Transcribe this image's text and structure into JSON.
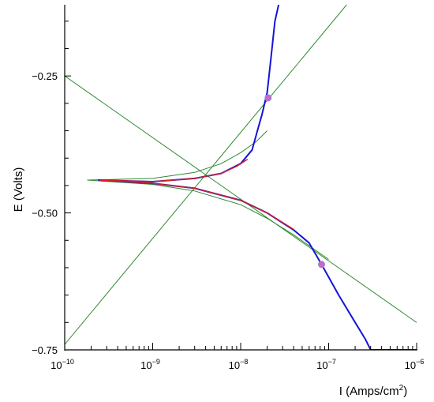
{
  "chart_data": {
    "type": "line",
    "xlabel": "I (Amps/cm",
    "xlabel_sup": "2",
    "xlabel_close": ")",
    "ylabel": "E (Volts)",
    "x_scale": "log",
    "xlim": [
      1e-10,
      1e-06
    ],
    "ylim": [
      -0.75,
      -0.12
    ],
    "grid": false,
    "legend": "none",
    "x_ticks": [
      {
        "value": 1e-10,
        "base": "10",
        "exp": "−10"
      },
      {
        "value": 1e-09,
        "base": "10",
        "exp": "−9"
      },
      {
        "value": 1e-08,
        "base": "10",
        "exp": "−8"
      },
      {
        "value": 1e-07,
        "base": "10",
        "exp": "−7"
      },
      {
        "value": 1e-06,
        "base": "10",
        "exp": "−6"
      }
    ],
    "y_ticks": [
      {
        "value": -0.25,
        "label": "−0.25"
      },
      {
        "value": -0.5,
        "label": "−0.50"
      },
      {
        "value": -0.75,
        "label": "−0.75"
      }
    ],
    "colors": {
      "measured": "#1515d6",
      "fit": "#d42020",
      "tafel": "#2e8b2e",
      "marker": "#cc66cc"
    },
    "series": [
      {
        "role": "measured-anodic",
        "color": "#1515d6",
        "x": [
          2.4e-10,
          1e-09,
          3e-09,
          6e-09,
          1e-08,
          1.35e-08,
          1.55e-08,
          1.75e-08,
          2e-08,
          2.2e-08,
          2.45e-08,
          2.7e-08
        ],
        "y": [
          -0.44,
          -0.443,
          -0.437,
          -0.428,
          -0.41,
          -0.385,
          -0.35,
          -0.32,
          -0.28,
          -0.22,
          -0.15,
          -0.12
        ]
      },
      {
        "role": "measured-cathodic",
        "color": "#1515d6",
        "x": [
          2.4e-10,
          1e-09,
          3e-09,
          1e-08,
          2e-08,
          4e-08,
          6e-08,
          8.3e-08,
          1.3e-07,
          2e-07,
          2.6e-07,
          3e-07,
          4e-07,
          6e-07,
          1e-06
        ],
        "y": [
          -0.44,
          -0.446,
          -0.455,
          -0.477,
          -0.5,
          -0.531,
          -0.555,
          -0.594,
          -0.65,
          -0.7,
          -0.73,
          -0.75,
          -0.75,
          -0.75,
          -0.75
        ]
      },
      {
        "role": "fit-anodic",
        "color": "#d42020",
        "x": [
          2.5e-10,
          1e-09,
          3e-09,
          6e-09,
          9e-09,
          1.2e-08
        ],
        "y": [
          -0.44,
          -0.443,
          -0.437,
          -0.428,
          -0.415,
          -0.402
        ]
      },
      {
        "role": "fit-cathodic",
        "color": "#d42020",
        "x": [
          2.5e-10,
          1e-09,
          3e-09,
          1e-08,
          2e-08,
          4e-08
        ],
        "y": [
          -0.44,
          -0.446,
          -0.455,
          -0.477,
          -0.5,
          -0.53
        ]
      },
      {
        "role": "tafel-model-anodic",
        "color": "#2e8b2e",
        "x": [
          1.8e-10,
          1e-09,
          3e-09,
          6e-09,
          1e-08,
          1.5e-08,
          2e-08
        ],
        "y": [
          -0.44,
          -0.437,
          -0.426,
          -0.41,
          -0.39,
          -0.37,
          -0.35
        ]
      },
      {
        "role": "tafel-model-cathodic",
        "color": "#2e8b2e",
        "x": [
          1.8e-10,
          1e-09,
          3e-09,
          1e-08,
          2e-08,
          4e-08,
          6e-08,
          1e-07
        ],
        "y": [
          -0.44,
          -0.448,
          -0.46,
          -0.485,
          -0.51,
          -0.54,
          -0.56,
          -0.585
        ]
      },
      {
        "role": "tafel-line-anodic",
        "color": "#2e8b2e",
        "x": [
          1e-10,
          1.6e-07
        ],
        "y": [
          -0.74,
          -0.12
        ]
      },
      {
        "role": "tafel-line-cathodic",
        "color": "#2e8b2e",
        "x": [
          1e-10,
          1e-06
        ],
        "y": [
          -0.25,
          -0.7
        ]
      }
    ],
    "markers": [
      {
        "x": 2.05e-08,
        "y": -0.29,
        "color": "#cc66cc"
      },
      {
        "x": 8.3e-08,
        "y": -0.594,
        "color": "#cc66cc"
      }
    ]
  }
}
